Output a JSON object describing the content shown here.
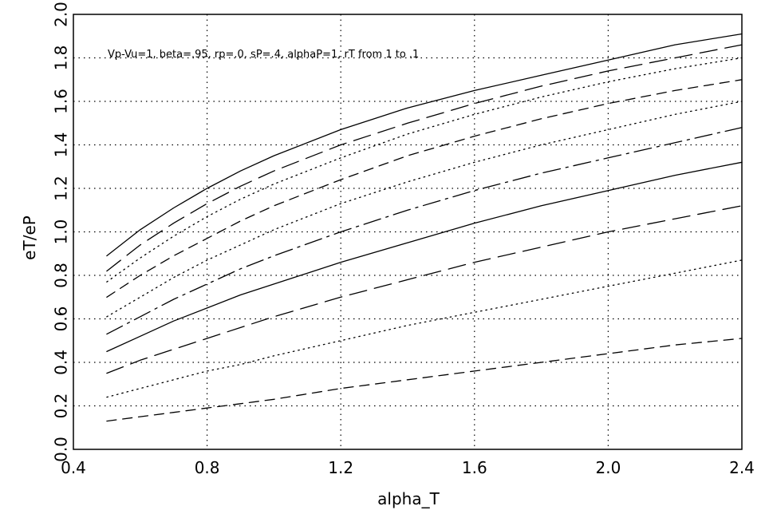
{
  "chart_data": {
    "type": "line",
    "title": "",
    "annotation": "Vp-Vu=1, beta=.95, rp=.0, sP=.4, alphaP=1, rT from 1 to .1",
    "xlabel": "alpha_T",
    "ylabel": "eT/eP",
    "xlim": [
      0.4,
      2.4
    ],
    "ylim": [
      0.0,
      2.0
    ],
    "x_ticks": [
      "0.4",
      "0.8",
      "1.2",
      "1.6",
      "2.0",
      "2.4"
    ],
    "y_ticks": [
      "0.0",
      "0.2",
      "0.4",
      "0.6",
      "0.8",
      "1.0",
      "1.2",
      "1.4",
      "1.6",
      "1.8",
      "2.0"
    ],
    "grid": true,
    "x": [
      0.5,
      0.6,
      0.7,
      0.8,
      0.9,
      1.0,
      1.2,
      1.4,
      1.6,
      1.8,
      2.0,
      2.2,
      2.4
    ],
    "series": [
      {
        "style": "solid",
        "values": [
          0.89,
          1.01,
          1.11,
          1.2,
          1.28,
          1.35,
          1.47,
          1.57,
          1.65,
          1.72,
          1.79,
          1.86,
          1.91
        ]
      },
      {
        "style": "longdash",
        "values": [
          0.82,
          0.94,
          1.04,
          1.13,
          1.21,
          1.28,
          1.4,
          1.5,
          1.59,
          1.67,
          1.74,
          1.8,
          1.86
        ]
      },
      {
        "style": "dotted",
        "values": [
          0.77,
          0.88,
          0.98,
          1.07,
          1.15,
          1.22,
          1.34,
          1.45,
          1.54,
          1.62,
          1.69,
          1.75,
          1.8
        ]
      },
      {
        "style": "dashed",
        "values": [
          0.7,
          0.8,
          0.89,
          0.97,
          1.05,
          1.12,
          1.24,
          1.35,
          1.44,
          1.52,
          1.59,
          1.65,
          1.7
        ]
      },
      {
        "style": "dotted",
        "values": [
          0.61,
          0.7,
          0.79,
          0.87,
          0.94,
          1.01,
          1.13,
          1.23,
          1.32,
          1.4,
          1.47,
          1.54,
          1.6
        ]
      },
      {
        "style": "dashdot",
        "values": [
          0.53,
          0.61,
          0.69,
          0.76,
          0.83,
          0.89,
          1.0,
          1.1,
          1.19,
          1.27,
          1.34,
          1.41,
          1.48
        ]
      },
      {
        "style": "solid",
        "values": [
          0.45,
          0.52,
          0.59,
          0.65,
          0.71,
          0.76,
          0.86,
          0.95,
          1.04,
          1.12,
          1.19,
          1.26,
          1.32
        ]
      },
      {
        "style": "longdash",
        "values": [
          0.35,
          0.41,
          0.46,
          0.51,
          0.56,
          0.61,
          0.7,
          0.78,
          0.86,
          0.93,
          1.0,
          1.06,
          1.12
        ]
      },
      {
        "style": "dotted",
        "values": [
          0.24,
          0.28,
          0.32,
          0.36,
          0.39,
          0.43,
          0.5,
          0.57,
          0.63,
          0.69,
          0.75,
          0.81,
          0.87
        ]
      },
      {
        "style": "dashed",
        "values": [
          0.13,
          0.15,
          0.17,
          0.19,
          0.21,
          0.23,
          0.28,
          0.32,
          0.36,
          0.4,
          0.44,
          0.48,
          0.51
        ]
      }
    ]
  }
}
